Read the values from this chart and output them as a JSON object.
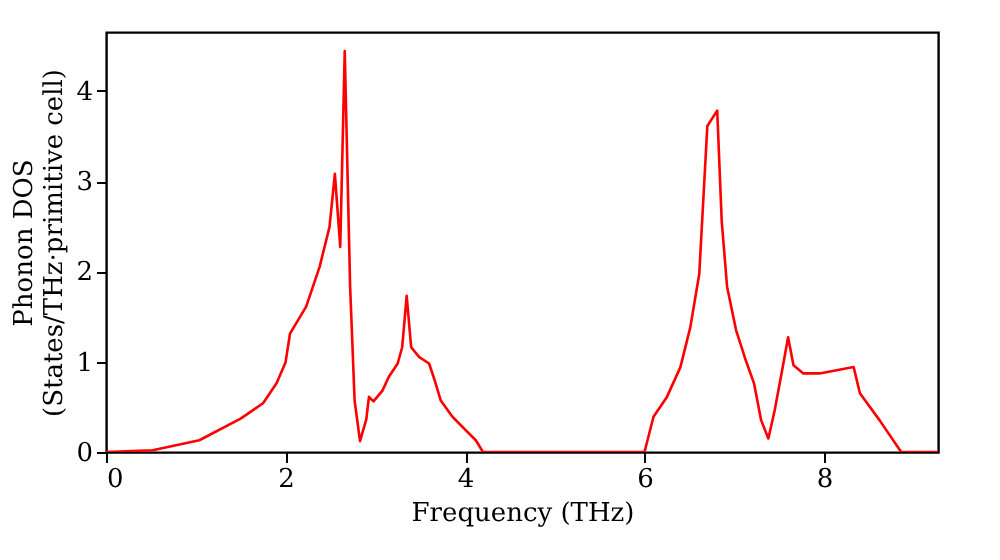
{
  "chart_data": {
    "type": "line",
    "xlabel": "Frequency (THz)",
    "ylabel": "Phonon DOS\n(States/THz·primitive cell)",
    "xlim": [
      0,
      9.27
    ],
    "ylim": [
      0,
      4.65
    ],
    "xticks": [
      0,
      2,
      4,
      6,
      8
    ],
    "yticks": [
      0,
      1,
      2,
      3,
      4
    ],
    "grid": false,
    "line_style": "solid",
    "marker": "none",
    "series": [
      {
        "color": "#ff0000",
        "x": [
          0,
          0.52,
          1.04,
          1.5,
          1.75,
          1.9,
          2.0,
          2.05,
          2.23,
          2.38,
          2.49,
          2.55,
          2.61,
          2.66,
          2.72,
          2.77,
          2.83,
          2.9,
          2.93,
          2.98,
          3.08,
          3.15,
          3.25,
          3.3,
          3.35,
          3.4,
          3.49,
          3.6,
          3.66,
          3.73,
          3.86,
          4.01,
          4.12,
          4.2,
          6.0,
          6.1,
          6.25,
          6.4,
          6.51,
          6.61,
          6.7,
          6.81,
          6.86,
          6.92,
          7.02,
          7.13,
          7.22,
          7.3,
          7.38,
          7.45,
          7.54,
          7.6,
          7.66,
          7.77,
          7.95,
          8.33,
          8.4,
          8.62,
          8.86,
          9.27
        ],
        "values": [
          0,
          0.02,
          0.13,
          0.37,
          0.54,
          0.76,
          0.99,
          1.31,
          1.61,
          2.05,
          2.49,
          3.08,
          2.27,
          4.44,
          1.83,
          0.57,
          0.12,
          0.36,
          0.61,
          0.56,
          0.68,
          0.83,
          0.98,
          1.16,
          1.73,
          1.16,
          1.05,
          0.98,
          0.8,
          0.57,
          0.39,
          0.24,
          0.13,
          0,
          0,
          0.39,
          0.61,
          0.94,
          1.38,
          1.97,
          3.61,
          3.78,
          2.56,
          1.83,
          1.35,
          1.01,
          0.76,
          0.35,
          0.15,
          0.46,
          0.94,
          1.27,
          0.96,
          0.87,
          0.87,
          0.94,
          0.65,
          0.35,
          0,
          0
        ]
      }
    ]
  }
}
